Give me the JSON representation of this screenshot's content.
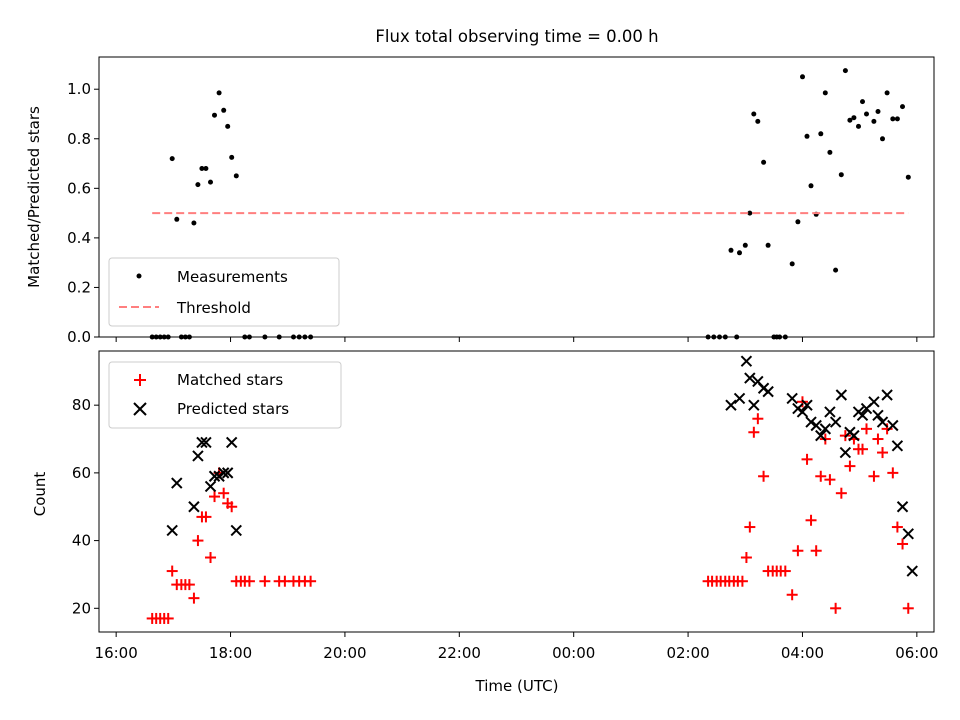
{
  "colors": {
    "measurement": "#000000",
    "threshold": "#ff7f7f",
    "matched": "#ff0000",
    "predicted": "#000000"
  },
  "chart_data": [
    {
      "type": "scatter",
      "title": "Flux total observing time = 0.00 h",
      "xlabel": "",
      "ylabel": "Matched/Predicted stars",
      "xlim": [
        -0.3,
        14.3
      ],
      "ylim": [
        0,
        1.13
      ],
      "yticks": [
        0.0,
        0.2,
        0.4,
        0.6,
        0.8,
        1.0
      ],
      "ytick_labels": [
        "0.0",
        "0.2",
        "0.4",
        "0.6",
        "0.8",
        "1.0"
      ],
      "xticks": [
        0,
        2,
        4,
        6,
        8,
        10,
        12,
        14
      ],
      "x_unit": "hours since 16:00 UTC",
      "legend": {
        "placement": "lower-left",
        "entries": [
          "Measurements",
          "Threshold"
        ]
      },
      "threshold": {
        "name": "Threshold",
        "y": 0.5,
        "x_range": [
          0.63,
          13.85
        ]
      },
      "series": [
        {
          "name": "Measurements",
          "marker": "dot",
          "points": [
            [
              0.63,
              0
            ],
            [
              0.7,
              0
            ],
            [
              0.77,
              0
            ],
            [
              0.84,
              0
            ],
            [
              0.91,
              0
            ],
            [
              0.98,
              0.72
            ],
            [
              1.06,
              0.475
            ],
            [
              1.14,
              0
            ],
            [
              1.21,
              0
            ],
            [
              1.28,
              0
            ],
            [
              1.36,
              0.46
            ],
            [
              1.43,
              0.615
            ],
            [
              1.5,
              0.68
            ],
            [
              1.57,
              0.68
            ],
            [
              1.65,
              0.625
            ],
            [
              1.72,
              0.895
            ],
            [
              1.8,
              0.985
            ],
            [
              1.88,
              0.915
            ],
            [
              1.95,
              0.85
            ],
            [
              2.02,
              0.725
            ],
            [
              2.1,
              0.65
            ],
            [
              2.25,
              0
            ],
            [
              2.33,
              0
            ],
            [
              2.6,
              0
            ],
            [
              2.85,
              0
            ],
            [
              3.1,
              0
            ],
            [
              3.2,
              0
            ],
            [
              3.3,
              0
            ],
            [
              3.4,
              0
            ],
            [
              10.35,
              0
            ],
            [
              10.45,
              0
            ],
            [
              10.55,
              0
            ],
            [
              10.65,
              0
            ],
            [
              10.75,
              0.35
            ],
            [
              10.85,
              0
            ],
            [
              10.9,
              0.34
            ],
            [
              11.0,
              0.37
            ],
            [
              11.08,
              0.5
            ],
            [
              11.15,
              0.9
            ],
            [
              11.22,
              0.87
            ],
            [
              11.32,
              0.705
            ],
            [
              11.4,
              0.37
            ],
            [
              11.5,
              0
            ],
            [
              11.55,
              0
            ],
            [
              11.6,
              0
            ],
            [
              11.7,
              0
            ],
            [
              11.82,
              0.295
            ],
            [
              11.92,
              0.465
            ],
            [
              12.0,
              1.05
            ],
            [
              12.08,
              0.81
            ],
            [
              12.15,
              0.61
            ],
            [
              12.24,
              0.495
            ],
            [
              12.32,
              0.82
            ],
            [
              12.4,
              0.985
            ],
            [
              12.48,
              0.745
            ],
            [
              12.58,
              0.27
            ],
            [
              12.68,
              0.655
            ],
            [
              12.75,
              1.075
            ],
            [
              12.83,
              0.875
            ],
            [
              12.9,
              0.885
            ],
            [
              12.98,
              0.85
            ],
            [
              13.05,
              0.95
            ],
            [
              13.12,
              0.9
            ],
            [
              13.25,
              0.87
            ],
            [
              13.32,
              0.91
            ],
            [
              13.4,
              0.8
            ],
            [
              13.48,
              0.985
            ],
            [
              13.58,
              0.88
            ],
            [
              13.66,
              0.88
            ],
            [
              13.75,
              0.93
            ],
            [
              13.85,
              0.645
            ]
          ]
        }
      ]
    },
    {
      "type": "scatter",
      "title": "",
      "xlabel": "Time (UTC)",
      "ylabel": "Count",
      "xlim": [
        -0.3,
        14.3
      ],
      "ylim": [
        13,
        96
      ],
      "yticks": [
        20,
        40,
        60,
        80
      ],
      "ytick_labels": [
        "20",
        "40",
        "60",
        "80"
      ],
      "xticks": [
        0,
        2,
        4,
        6,
        8,
        10,
        12,
        14
      ],
      "xtick_labels": [
        "16:00",
        "18:00",
        "20:00",
        "22:00",
        "00:00",
        "02:00",
        "04:00",
        "06:00"
      ],
      "x_unit": "hours since 16:00 UTC",
      "legend": {
        "placement": "upper-left",
        "entries": [
          "Matched stars",
          "Predicted stars"
        ]
      },
      "series": [
        {
          "name": "Matched stars",
          "marker": "plus",
          "points": [
            [
              0.63,
              17
            ],
            [
              0.7,
              17
            ],
            [
              0.77,
              17
            ],
            [
              0.84,
              17
            ],
            [
              0.91,
              17
            ],
            [
              0.98,
              31
            ],
            [
              1.06,
              27
            ],
            [
              1.14,
              27
            ],
            [
              1.21,
              27
            ],
            [
              1.28,
              27
            ],
            [
              1.36,
              23
            ],
            [
              1.43,
              40
            ],
            [
              1.5,
              47
            ],
            [
              1.57,
              47
            ],
            [
              1.65,
              35
            ],
            [
              1.72,
              53
            ],
            [
              1.8,
              60
            ],
            [
              1.88,
              54
            ],
            [
              1.95,
              51
            ],
            [
              2.02,
              50
            ],
            [
              2.1,
              28
            ],
            [
              2.18,
              28
            ],
            [
              2.25,
              28
            ],
            [
              2.33,
              28
            ],
            [
              2.6,
              28
            ],
            [
              2.85,
              28
            ],
            [
              2.95,
              28
            ],
            [
              3.1,
              28
            ],
            [
              3.2,
              28
            ],
            [
              3.3,
              28
            ],
            [
              3.4,
              28
            ],
            [
              10.35,
              28
            ],
            [
              10.42,
              28
            ],
            [
              10.5,
              28
            ],
            [
              10.57,
              28
            ],
            [
              10.65,
              28
            ],
            [
              10.72,
              28
            ],
            [
              10.8,
              28
            ],
            [
              10.87,
              28
            ],
            [
              10.95,
              28
            ],
            [
              11.02,
              35
            ],
            [
              11.08,
              44
            ],
            [
              11.15,
              72
            ],
            [
              11.22,
              76
            ],
            [
              11.32,
              59
            ],
            [
              11.4,
              31
            ],
            [
              11.48,
              31
            ],
            [
              11.55,
              31
            ],
            [
              11.62,
              31
            ],
            [
              11.7,
              31
            ],
            [
              11.82,
              24
            ],
            [
              11.92,
              37
            ],
            [
              12.0,
              81
            ],
            [
              12.08,
              64
            ],
            [
              12.15,
              46
            ],
            [
              12.24,
              37
            ],
            [
              12.32,
              59
            ],
            [
              12.4,
              70
            ],
            [
              12.48,
              58
            ],
            [
              12.58,
              20
            ],
            [
              12.68,
              54
            ],
            [
              12.75,
              71
            ],
            [
              12.83,
              62
            ],
            [
              12.9,
              70
            ],
            [
              12.98,
              67
            ],
            [
              13.05,
              67
            ],
            [
              13.12,
              73
            ],
            [
              13.25,
              59
            ],
            [
              13.32,
              70
            ],
            [
              13.4,
              66
            ],
            [
              13.48,
              73
            ],
            [
              13.58,
              60
            ],
            [
              13.66,
              44
            ],
            [
              13.75,
              39
            ],
            [
              13.85,
              20
            ]
          ]
        },
        {
          "name": "Predicted stars",
          "marker": "x",
          "points": [
            [
              0.98,
              43
            ],
            [
              1.06,
              57
            ],
            [
              1.36,
              50
            ],
            [
              1.43,
              65
            ],
            [
              1.5,
              69
            ],
            [
              1.57,
              69
            ],
            [
              1.65,
              56
            ],
            [
              1.72,
              59
            ],
            [
              1.8,
              59
            ],
            [
              1.88,
              60
            ],
            [
              1.95,
              60
            ],
            [
              2.02,
              69
            ],
            [
              2.1,
              43
            ],
            [
              10.75,
              80
            ],
            [
              10.9,
              82
            ],
            [
              11.02,
              93
            ],
            [
              11.08,
              88
            ],
            [
              11.15,
              80
            ],
            [
              11.22,
              87
            ],
            [
              11.32,
              85
            ],
            [
              11.4,
              84
            ],
            [
              11.82,
              82
            ],
            [
              11.92,
              79
            ],
            [
              12.0,
              78
            ],
            [
              12.08,
              80
            ],
            [
              12.15,
              75
            ],
            [
              12.24,
              74
            ],
            [
              12.32,
              71
            ],
            [
              12.4,
              73
            ],
            [
              12.48,
              78
            ],
            [
              12.58,
              75
            ],
            [
              12.68,
              83
            ],
            [
              12.75,
              66
            ],
            [
              12.83,
              72
            ],
            [
              12.9,
              71
            ],
            [
              12.98,
              78
            ],
            [
              13.05,
              77
            ],
            [
              13.12,
              79
            ],
            [
              13.25,
              81
            ],
            [
              13.32,
              77
            ],
            [
              13.4,
              75
            ],
            [
              13.48,
              83
            ],
            [
              13.58,
              74
            ],
            [
              13.66,
              68
            ],
            [
              13.75,
              50
            ],
            [
              13.85,
              42
            ],
            [
              13.92,
              31
            ]
          ]
        }
      ]
    }
  ]
}
